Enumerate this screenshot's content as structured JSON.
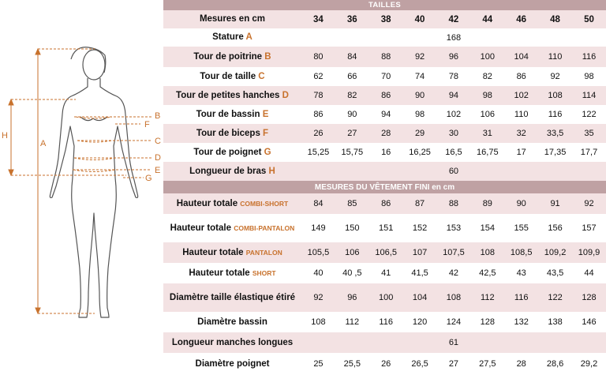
{
  "letters": {
    "A": "A",
    "B": "B",
    "C": "C",
    "D": "D",
    "E": "E",
    "F": "F",
    "G": "G",
    "H": "H"
  },
  "header": {
    "tailles": "TAILLES",
    "mesures_label": "Mesures en cm",
    "sizes": [
      "34",
      "36",
      "38",
      "40",
      "42",
      "44",
      "46",
      "48",
      "50"
    ]
  },
  "body_rows": [
    {
      "label": "Stature",
      "letter": "A",
      "single": "168"
    },
    {
      "label": "Tour de poitrine",
      "letter": "B",
      "values": [
        "80",
        "84",
        "88",
        "92",
        "96",
        "100",
        "104",
        "110",
        "116"
      ]
    },
    {
      "label": "Tour de taille",
      "letter": "C",
      "values": [
        "62",
        "66",
        "70",
        "74",
        "78",
        "82",
        "86",
        "92",
        "98"
      ]
    },
    {
      "label": "Tour de petites hanches",
      "letter": "D",
      "values": [
        "78",
        "82",
        "86",
        "90",
        "94",
        "98",
        "102",
        "108",
        "114"
      ]
    },
    {
      "label": "Tour de bassin",
      "letter": "E",
      "values": [
        "86",
        "90",
        "94",
        "98",
        "102",
        "106",
        "110",
        "116",
        "122"
      ]
    },
    {
      "label": "Tour de biceps",
      "letter": "F",
      "values": [
        "26",
        "27",
        "28",
        "29",
        "30",
        "31",
        "32",
        "33,5",
        "35"
      ]
    },
    {
      "label": "Tour de poignet",
      "letter": "G",
      "values": [
        "15,25",
        "15,75",
        "16",
        "16,25",
        "16,5",
        "16,75",
        "17",
        "17,35",
        "17,7"
      ]
    },
    {
      "label": "Longueur de bras",
      "letter": "H",
      "single": "60"
    }
  ],
  "garment_header": "MESURES DU VÊTEMENT FINI en cm",
  "garment_rows": [
    {
      "label": "Hauteur totale",
      "garment": "COMBI-SHORT",
      "values": [
        "84",
        "85",
        "86",
        "87",
        "88",
        "89",
        "90",
        "91",
        "92"
      ]
    },
    {
      "label": "Hauteur totale",
      "garment": "COMBI-PANTALON",
      "values": [
        "149",
        "150",
        "151",
        "152",
        "153",
        "154",
        "155",
        "156",
        "157"
      ]
    },
    {
      "label": "Hauteur totale",
      "garment": "PANTALON",
      "values": [
        "105,5",
        "106",
        "106,5",
        "107",
        "107,5",
        "108",
        "108,5",
        "109,2",
        "109,9"
      ]
    },
    {
      "label": "Hauteur totale",
      "garment": "SHORT",
      "values": [
        "40",
        "40 ,5",
        "41",
        "41,5",
        "42",
        "42,5",
        "43",
        "43,5",
        "44"
      ]
    },
    {
      "label": "Diamètre  taille élastique étiré",
      "garment": "",
      "values": [
        "92",
        "96",
        "100",
        "104",
        "108",
        "112",
        "116",
        "122",
        "128"
      ]
    },
    {
      "label": "Diamètre bassin",
      "garment": "",
      "values": [
        "108",
        "112",
        "116",
        "120",
        "124",
        "128",
        "132",
        "138",
        "146"
      ]
    },
    {
      "label": "Longueur manches longues",
      "garment": "",
      "single": "61"
    },
    {
      "label": "Diamètre poignet",
      "garment": "",
      "values": [
        "25",
        "25,5",
        "26",
        "26,5",
        "27",
        "27,5",
        "28",
        "28,6",
        "29,2"
      ]
    }
  ]
}
